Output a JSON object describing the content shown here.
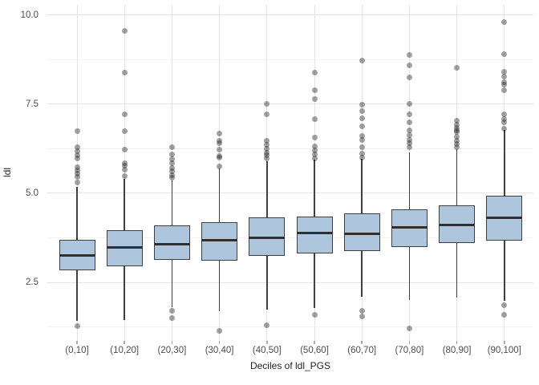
{
  "chart_data": {
    "type": "boxplot",
    "title": "",
    "xlabel": "Deciles of ldl_PGS",
    "ylabel": "ldl",
    "grid": true,
    "legend": false,
    "ylim": [
      0.88,
      10.28
    ],
    "y_axis": {
      "tick_values": [
        2.5,
        5.0,
        7.5,
        10.0
      ],
      "tick_labels": [
        "2.5",
        "5.0",
        "7.5",
        "10.0"
      ],
      "minor_tick_values": [
        1.25,
        3.75,
        6.25,
        8.75
      ]
    },
    "categories": [
      "(0,10]",
      "(10,20]",
      "(20,30]",
      "(30,40]",
      "(40,50]",
      "(50,60]",
      "(60,70]",
      "(70,80]",
      "(80,90]",
      "(90,100]"
    ],
    "boxes": [
      {
        "category": "(0,10]",
        "whisker_low": 1.42,
        "q1": 2.84,
        "median": 3.25,
        "q3": 3.7,
        "whisker_high": 5.17,
        "outliers": [
          6.75,
          6.29,
          6.17,
          6.07,
          5.97,
          5.72,
          5.63,
          5.54,
          5.45,
          5.31,
          1.28
        ]
      },
      {
        "category": "(10,20]",
        "whisker_low": 1.45,
        "q1": 2.96,
        "median": 3.47,
        "q3": 3.96,
        "whisker_high": 5.4,
        "outliers": [
          9.56,
          8.39,
          7.22,
          6.75,
          6.23,
          5.85,
          5.78,
          5.66,
          5.47
        ]
      },
      {
        "category": "(20,30]",
        "whisker_low": 1.81,
        "q1": 3.14,
        "median": 3.57,
        "q3": 4.09,
        "whisker_high": 5.36,
        "outliers": [
          6.3,
          6.08,
          5.96,
          5.85,
          5.7,
          5.62,
          5.51,
          5.43,
          1.7,
          1.5
        ]
      },
      {
        "category": "(30,40]",
        "whisker_low": 1.7,
        "q1": 3.11,
        "median": 3.68,
        "q3": 4.18,
        "whisker_high": 5.69,
        "outliers": [
          6.67,
          6.47,
          6.4,
          6.23,
          6.05,
          5.99,
          5.76,
          1.14
        ]
      },
      {
        "category": "(40,50]",
        "whisker_low": 1.73,
        "q1": 3.25,
        "median": 3.75,
        "q3": 4.32,
        "whisker_high": 5.9,
        "outliers": [
          7.5,
          7.22,
          6.47,
          6.36,
          6.25,
          6.14,
          6.07,
          5.98,
          1.3
        ]
      },
      {
        "category": "(50,60]",
        "whisker_low": 1.78,
        "q1": 3.32,
        "median": 3.88,
        "q3": 4.35,
        "whisker_high": 5.95,
        "outliers": [
          8.39,
          7.89,
          7.64,
          7.07,
          6.55,
          6.32,
          6.2,
          6.08,
          5.98,
          1.6
        ]
      },
      {
        "category": "(60,70]",
        "whisker_low": 2.1,
        "q1": 3.38,
        "median": 3.86,
        "q3": 4.43,
        "whisker_high": 5.96,
        "outliers": [
          8.71,
          7.48,
          7.3,
          7.1,
          6.88,
          6.6,
          6.5,
          6.3,
          6.1,
          6.0,
          1.7,
          1.55
        ]
      },
      {
        "category": "(70,80]",
        "whisker_low": 2.01,
        "q1": 3.49,
        "median": 4.05,
        "q3": 4.55,
        "whisker_high": 6.15,
        "outliers": [
          8.87,
          8.58,
          8.25,
          7.5,
          7.22,
          6.98,
          6.76,
          6.62,
          6.5,
          6.4,
          6.3,
          1.21
        ]
      },
      {
        "category": "(80,90]",
        "whisker_low": 2.08,
        "q1": 3.6,
        "median": 4.11,
        "q3": 4.66,
        "whisker_high": 6.23,
        "outliers": [
          8.51,
          7.03,
          6.92,
          6.82,
          6.77,
          6.72,
          6.58,
          6.47,
          6.38,
          6.29
        ]
      },
      {
        "category": "(90,100]",
        "whisker_low": 1.99,
        "q1": 3.68,
        "median": 4.31,
        "q3": 4.92,
        "whisker_high": 6.77,
        "outliers": [
          9.79,
          8.9,
          8.4,
          8.26,
          8.1,
          8.04,
          7.88,
          7.21,
          7.07,
          6.99,
          6.81,
          1.86,
          1.6
        ]
      }
    ],
    "colors": {
      "box_fill": "#adc6de",
      "box_border": "#3f3f3f",
      "median_line": "#2f2f2f",
      "whisker": "#3f3f3f",
      "outlier": "rgba(30,30,30,0.42)",
      "grid_major": "#e4e4e4",
      "grid_minor": "#f2f2f2",
      "tick_text": "#4d4d4d",
      "background": "#ffffff"
    }
  }
}
